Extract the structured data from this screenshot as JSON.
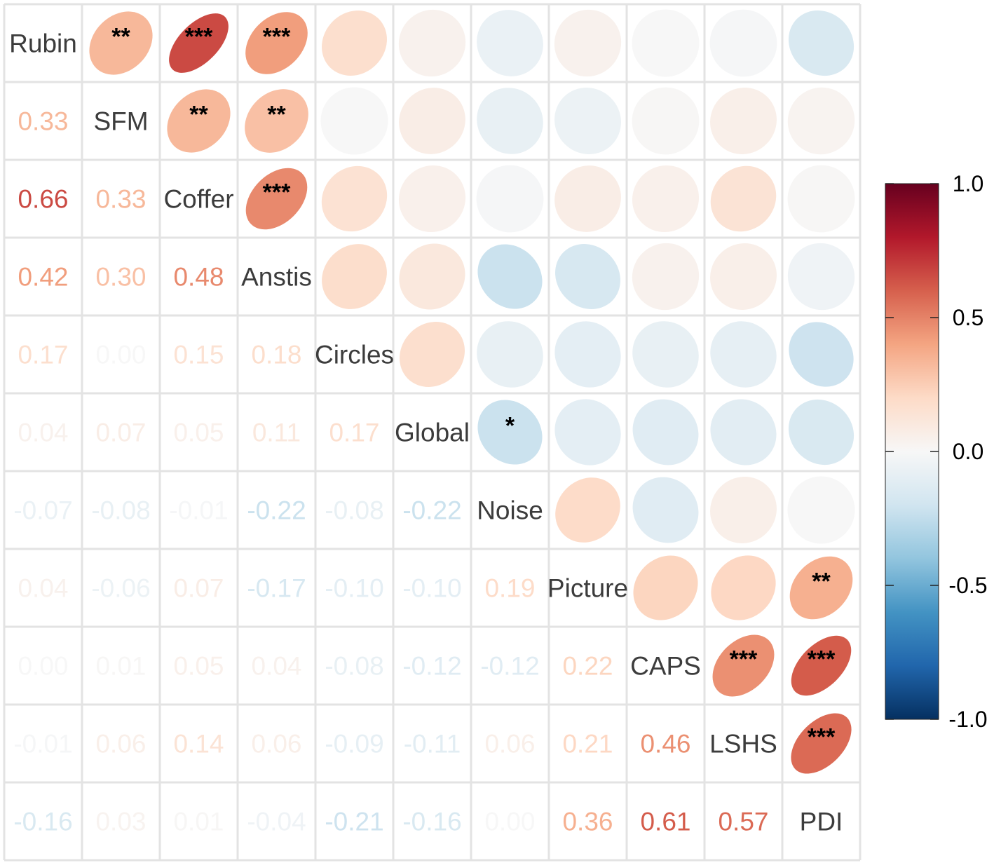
{
  "chart_data": {
    "type": "heatmap",
    "style": "mixed correlation plot: ellipses with significance stars in upper triangle, numeric coefficients in lower triangle, variable names on diagonal",
    "variables": [
      "Rubin",
      "SFM",
      "Coffer",
      "Anstis",
      "Circles",
      "Global",
      "Noise",
      "Picture",
      "CAPS",
      "LSHS",
      "PDI"
    ],
    "matrix": [
      [
        1.0,
        0.33,
        0.66,
        0.42,
        0.17,
        0.04,
        -0.07,
        0.04,
        0.0,
        -0.01,
        -0.16
      ],
      [
        0.33,
        1.0,
        0.33,
        0.3,
        0.0,
        0.07,
        -0.08,
        -0.06,
        0.01,
        0.06,
        0.03
      ],
      [
        0.66,
        0.33,
        1.0,
        0.48,
        0.15,
        0.05,
        -0.01,
        0.07,
        0.05,
        0.14,
        0.01
      ],
      [
        0.42,
        0.3,
        0.48,
        1.0,
        0.18,
        0.11,
        -0.22,
        -0.17,
        0.04,
        0.06,
        -0.04
      ],
      [
        0.17,
        0.0,
        0.15,
        0.18,
        1.0,
        0.17,
        -0.08,
        -0.1,
        -0.08,
        -0.09,
        -0.21
      ],
      [
        0.04,
        0.07,
        0.05,
        0.11,
        0.17,
        1.0,
        -0.22,
        -0.1,
        -0.12,
        -0.11,
        -0.16
      ],
      [
        -0.07,
        -0.08,
        -0.01,
        -0.22,
        -0.08,
        -0.22,
        1.0,
        0.19,
        -0.12,
        0.06,
        0.0
      ],
      [
        0.04,
        -0.06,
        0.07,
        -0.17,
        -0.1,
        -0.1,
        0.19,
        1.0,
        0.22,
        0.21,
        0.36
      ],
      [
        0.0,
        0.01,
        0.05,
        0.04,
        -0.08,
        -0.12,
        -0.12,
        0.22,
        1.0,
        0.46,
        0.61
      ],
      [
        -0.01,
        0.06,
        0.14,
        0.06,
        -0.09,
        -0.11,
        0.06,
        0.21,
        0.46,
        1.0,
        0.57
      ],
      [
        -0.16,
        0.03,
        0.01,
        -0.04,
        -0.21,
        -0.16,
        0.0,
        0.36,
        0.61,
        0.57,
        1.0
      ]
    ],
    "lower_labels": [
      [],
      [
        "0.33"
      ],
      [
        "0.66",
        "0.33"
      ],
      [
        "0.42",
        "0.30",
        "0.48"
      ],
      [
        "0.17",
        "0.00",
        "0.15",
        "0.18"
      ],
      [
        "0.04",
        "0.07",
        "0.05",
        "0.11",
        "0.17"
      ],
      [
        "-0.07",
        "-0.08",
        "-0.01",
        "-0.22",
        "-0.08",
        "-0.22"
      ],
      [
        "0.04",
        "-0.06",
        "0.07",
        "-0.17",
        "-0.10",
        "-0.10",
        "0.19"
      ],
      [
        "0.00",
        "0.01",
        "0.05",
        "0.04",
        "-0.08",
        "-0.12",
        "-0.12",
        "0.22"
      ],
      [
        "-0.01",
        "0.06",
        "0.14",
        "0.06",
        "-0.09",
        "-0.11",
        "0.06",
        "0.21",
        "0.46"
      ],
      [
        "-0.16",
        "0.03",
        "0.01",
        "-0.04",
        "-0.21",
        "-0.16",
        "0.00",
        "0.36",
        "0.61",
        "0.57"
      ]
    ],
    "significance": [
      [
        "",
        "**",
        "***",
        "***",
        "",
        "",
        "",
        "",
        "",
        "",
        ""
      ],
      [
        "",
        "",
        "**",
        "**",
        "",
        "",
        "",
        "",
        "",
        "",
        ""
      ],
      [
        "",
        "",
        "",
        "***",
        "",
        "",
        "",
        "",
        "",
        "",
        ""
      ],
      [
        "",
        "",
        "",
        "",
        "",
        "",
        "",
        "",
        "",
        "",
        ""
      ],
      [
        "",
        "",
        "",
        "",
        "",
        "",
        "",
        "",
        "",
        "",
        ""
      ],
      [
        "",
        "",
        "",
        "",
        "",
        "",
        "*",
        "",
        "",
        "",
        ""
      ],
      [
        "",
        "",
        "",
        "",
        "",
        "",
        "",
        "",
        "",
        "",
        ""
      ],
      [
        "",
        "",
        "",
        "",
        "",
        "",
        "",
        "",
        "",
        "",
        "**"
      ],
      [
        "",
        "",
        "",
        "",
        "",
        "",
        "",
        "",
        "",
        "***",
        "***"
      ],
      [
        "",
        "",
        "",
        "",
        "",
        "",
        "",
        "",
        "",
        "",
        "***"
      ],
      [
        "",
        "",
        "",
        "",
        "",
        "",
        "",
        "",
        "",
        "",
        ""
      ]
    ],
    "colorbar": {
      "range": [
        -1.0,
        1.0
      ],
      "tick_labels": [
        "1.0",
        "0.5",
        "0.0",
        "-0.5",
        "-1.0"
      ],
      "tick_values": [
        1.0,
        0.5,
        0.0,
        -0.5,
        -1.0
      ],
      "placement": "right",
      "colors": [
        "#053061",
        "#2166AC",
        "#4393C3",
        "#92C5DE",
        "#D1E5F0",
        "#F7F7F7",
        "#FDDBC7",
        "#F4A582",
        "#D6604D",
        "#B2182B",
        "#67001F"
      ]
    },
    "grid": true
  }
}
